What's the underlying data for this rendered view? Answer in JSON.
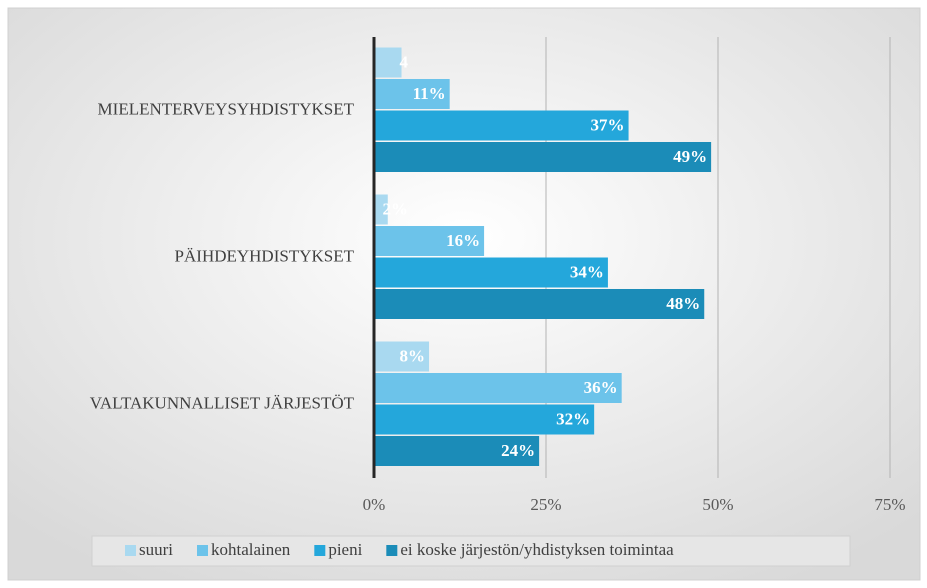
{
  "chart_data": {
    "type": "hbar",
    "categories": [
      "MIELENTERVEYSYHDISTYKSET",
      "PÄIHDEYHDISTYKSET",
      "VALTAKUNNALLISET JÄRJESTÖT"
    ],
    "series": [
      {
        "name": "suuri",
        "color": "#a9d9f0",
        "values": [
          4,
          2,
          8
        ],
        "value_labels": [
          "4",
          "2%",
          "8%"
        ]
      },
      {
        "name": "kohtalainen",
        "color": "#6cc3ea",
        "values": [
          11,
          16,
          36
        ],
        "value_labels": [
          "11%",
          "16%",
          "36%"
        ]
      },
      {
        "name": "pieni",
        "color": "#24a7db",
        "values": [
          37,
          34,
          32
        ],
        "value_labels": [
          "37%",
          "34%",
          "32%"
        ]
      },
      {
        "name": "ei koske järjestön/yhdistyksen toimintaa",
        "color": "#1b8cb8",
        "values": [
          49,
          48,
          24
        ],
        "value_labels": [
          "49%",
          "48%",
          "24%"
        ]
      }
    ],
    "xlim": [
      0,
      75
    ],
    "xticks": [
      {
        "value": 0,
        "label": "0%"
      },
      {
        "value": 25,
        "label": "25%"
      },
      {
        "value": 50,
        "label": "50%"
      },
      {
        "value": 75,
        "label": "75%"
      }
    ],
    "grid": true,
    "legend": "bottom"
  }
}
